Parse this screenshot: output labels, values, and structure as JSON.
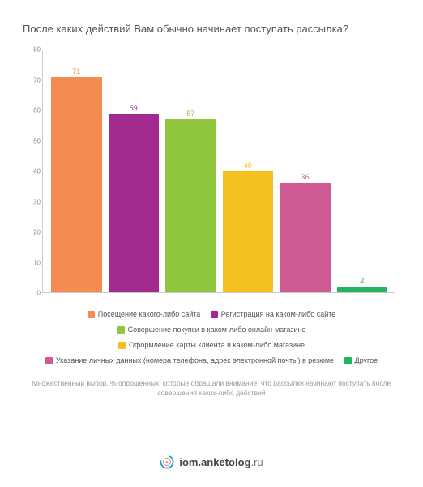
{
  "chart": {
    "type": "bar",
    "title": "После каких действий Вам обычно начинает поступать рассылка?",
    "title_fontsize": 13,
    "title_color": "#555555",
    "background_color": "#ffffff",
    "ylim": [
      0,
      80
    ],
    "ytick_step": 10,
    "yticks": [
      0,
      10,
      20,
      30,
      40,
      50,
      60,
      70,
      80
    ],
    "axis_color": "#cccccc",
    "tick_fontsize": 8,
    "tick_color": "#888888",
    "bar_label_fontsize": 9,
    "bars": [
      {
        "label": "Посещение какого-либо сайта",
        "value": 71,
        "color": "#f58b51"
      },
      {
        "label": "Регистрация на каком-либо сайте",
        "value": 59,
        "color": "#a32b8f"
      },
      {
        "label": "Совершение покупки в каком-либо онлайн-магазине",
        "value": 57,
        "color": "#8fc63d"
      },
      {
        "label": "Оформление карты клиента в каком-либо магазине",
        "value": 40,
        "color": "#f4c020"
      },
      {
        "label": "Указание личных данных (номера телефона, адрес электронной почты) в резюме",
        "value": 36,
        "color": "#cf5992"
      },
      {
        "label": "Другое",
        "value": 2,
        "color": "#24b35f"
      }
    ],
    "footnote": "Множественный выбор. % опрошенных, которые обращали внимание, что рассылки начинают поступать после совершения каких-либо действий",
    "footnote_fontsize": 8.5,
    "footnote_color": "#9a9a9a"
  },
  "brand": {
    "text_bold": "iom.anketolog",
    "text_light": ".ru",
    "text_color": "#444444",
    "logo_ring_color": "#1ea0d4",
    "logo_inner_color": "#f15a29",
    "logo_letter": "А"
  }
}
